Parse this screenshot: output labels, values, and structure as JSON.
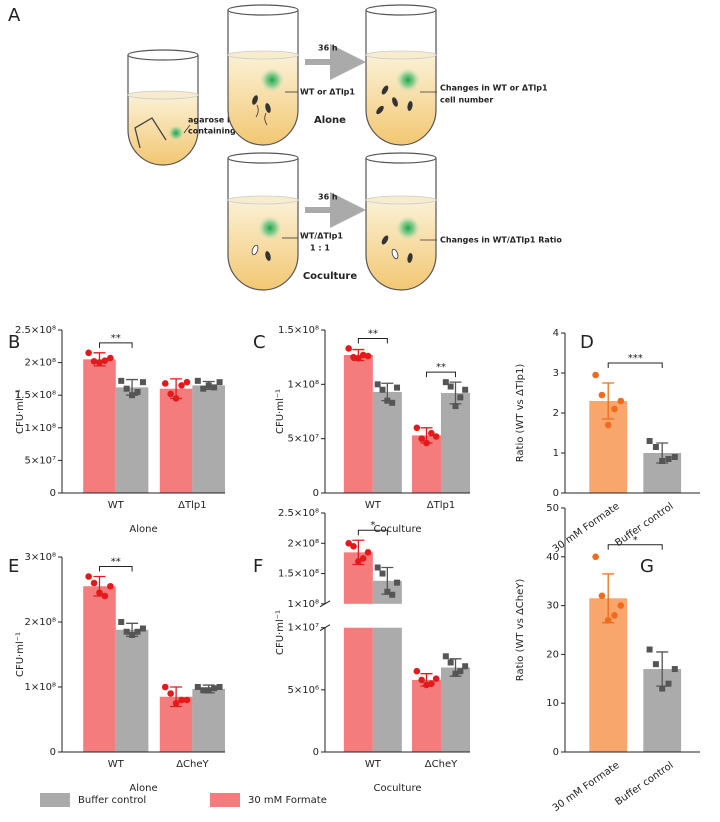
{
  "diagram": {
    "panel_label": "A",
    "start_tube": {
      "label_lines": [
        "agarose bead",
        "containing formate"
      ]
    },
    "alone": {
      "time": "36 h",
      "strain_label": "WT or ΔTlp1",
      "group": "Alone",
      "result_lines": [
        "Changes in WT or ΔTlp1",
        "cell number"
      ]
    },
    "coculture": {
      "time": "36 h",
      "strain_lines": [
        "WT/ΔTlp1",
        "1 : 1"
      ],
      "group": "Coculture",
      "result": "Changes in WT/ΔTlp1 Ratio"
    }
  },
  "chart_data": [
    {
      "type": "bar",
      "panel_label": "B",
      "ylabel": "CFU·ml⁻¹",
      "xlabel": "Alone",
      "categories": [
        "WT",
        "ΔTlp1"
      ],
      "series": [
        {
          "name": "30 mM Formate",
          "color": "#f47c7c",
          "point_color": "#e31a1c",
          "marker": "circle",
          "values": [
            205000000.0,
            160000000.0
          ],
          "errors": [
            10000000.0,
            15000000.0
          ],
          "points": [
            [
              215000000.0,
              202000000.0,
              200000000.0,
              203000000.0,
              207000000.0
            ],
            [
              168000000.0,
              152000000.0,
              145000000.0,
              165000000.0,
              170000000.0
            ]
          ]
        },
        {
          "name": "Buffer control",
          "color": "#ababab",
          "point_color": "#555555",
          "marker": "square",
          "values": [
            162000000.0,
            165000000.0
          ],
          "errors": [
            12000000.0,
            6000000.0
          ],
          "points": [
            [
              172000000.0,
              160000000.0,
              150000000.0,
              155000000.0,
              170000000.0
            ],
            [
              172000000.0,
              160000000.0,
              165000000.0,
              162000000.0,
              170000000.0
            ]
          ]
        }
      ],
      "significance": [
        "**",
        null
      ],
      "ylim": [
        0,
        250000000.0
      ],
      "yticks": [
        0,
        {
          "value": 50000000.0,
          "label": "5×10⁷"
        },
        {
          "value": 100000000.0,
          "label": "1×10⁸"
        },
        {
          "value": 150000000.0,
          "label": "1.5×10⁸"
        },
        {
          "value": 200000000.0,
          "label": "2×10⁸"
        },
        {
          "value": 250000000.0,
          "label": "2.5×10⁸"
        }
      ]
    },
    {
      "type": "bar",
      "panel_label": "C",
      "ylabel": "CFU·ml⁻¹",
      "xlabel": "Coculture",
      "categories": [
        "WT",
        "ΔTlp1"
      ],
      "series": [
        {
          "name": "30 mM Formate",
          "color": "#f47c7c",
          "point_color": "#e31a1c",
          "marker": "circle",
          "values": [
            127000000.0,
            53000000.0
          ],
          "errors": [
            5000000.0,
            7000000.0
          ],
          "points": [
            [
              133000000.0,
              125000000.0,
              124000000.0,
              127000000.0,
              126000000.0
            ],
            [
              60000000.0,
              50000000.0,
              46000000.0,
              55000000.0,
              52000000.0
            ]
          ]
        },
        {
          "name": "Buffer control",
          "color": "#ababab",
          "point_color": "#555555",
          "marker": "square",
          "values": [
            93000000.0,
            92000000.0
          ],
          "errors": [
            8000000.0,
            10000000.0
          ],
          "points": [
            [
              100000000.0,
              95000000.0,
              85000000.0,
              83000000.0,
              97000000.0
            ],
            [
              102000000.0,
              98000000.0,
              80000000.0,
              88000000.0,
              95000000.0
            ]
          ]
        }
      ],
      "significance": [
        "**",
        "**"
      ],
      "ylim": [
        0,
        150000000.0
      ],
      "yticks": [
        0,
        {
          "value": 50000000.0,
          "label": "5×10⁷"
        },
        {
          "value": 100000000.0,
          "label": "1×10⁸"
        },
        {
          "value": 150000000.0,
          "label": "1.5×10⁸"
        }
      ]
    },
    {
      "type": "bar",
      "panel_label": "D",
      "ylabel": "Ratio (WT vs ΔTlp1)",
      "categories": [
        "30 mM Formate",
        "Buffer control"
      ],
      "values": [
        2.3,
        1.0
      ],
      "errors": [
        0.45,
        0.25
      ],
      "colors": [
        "#f9a66c",
        "#ababab"
      ],
      "point_colors": [
        "#f26b1d",
        "#555555"
      ],
      "markers": [
        "circle",
        "square"
      ],
      "points": [
        [
          2.95,
          2.45,
          1.7,
          2.1,
          2.3
        ],
        [
          1.3,
          1.15,
          0.8,
          0.85,
          0.9
        ]
      ],
      "significance": "***",
      "ylim": [
        0,
        4
      ],
      "yticks": [
        0,
        1,
        2,
        3,
        4
      ]
    },
    {
      "type": "bar",
      "panel_label": "E",
      "ylabel": "CFU·ml⁻¹",
      "xlabel": "Alone",
      "categories": [
        "WT",
        "ΔCheY"
      ],
      "series": [
        {
          "name": "30 mM Formate",
          "color": "#f47c7c",
          "point_color": "#e31a1c",
          "marker": "circle",
          "values": [
            255000000.0,
            85000000.0
          ],
          "errors": [
            15000000.0,
            15000000.0
          ],
          "points": [
            [
              270000000.0,
              260000000.0,
              245000000.0,
              240000000.0,
              255000000.0
            ],
            [
              100000000.0,
              90000000.0,
              75000000.0,
              80000000.0,
              80000000.0
            ]
          ]
        },
        {
          "name": "Buffer control",
          "color": "#ababab",
          "point_color": "#555555",
          "marker": "square",
          "values": [
            188000000.0,
            97000000.0
          ],
          "errors": [
            10000000.0,
            6000000.0
          ],
          "points": [
            [
              200000000.0,
              185000000.0,
              180000000.0,
              185000000.0,
              190000000.0
            ],
            [
              100000000.0,
              95000000.0,
              95000000.0,
              98000000.0,
              100000000.0
            ]
          ]
        }
      ],
      "significance": [
        "**",
        null
      ],
      "ylim": [
        0,
        300000000.0
      ],
      "yticks": [
        0,
        {
          "value": 100000000.0,
          "label": "1×10⁸"
        },
        {
          "value": 200000000.0,
          "label": "2×10⁸"
        },
        {
          "value": 300000000.0,
          "label": "3×10⁸"
        }
      ]
    },
    {
      "type": "bar",
      "panel_label": "F",
      "ylabel": "CFU·ml⁻¹",
      "xlabel": "Coculture",
      "categories": [
        "WT",
        "ΔCheY"
      ],
      "series": [
        {
          "name": "30 mM Formate",
          "color": "#f47c7c",
          "point_color": "#e31a1c",
          "marker": "circle",
          "values": [
            185000000.0,
            5800000.0
          ],
          "errors": [
            20000000.0,
            500000.0
          ],
          "points": [
            [
              200000000.0,
              195000000.0,
              170000000.0,
              175000000.0,
              185000000.0
            ],
            [
              6500000.0,
              5800000.0,
              5400000.0,
              5500000.0,
              5900000.0
            ]
          ]
        },
        {
          "name": "Buffer control",
          "color": "#ababab",
          "point_color": "#555555",
          "marker": "square",
          "values": [
            138000000.0,
            6800000.0
          ],
          "errors": [
            22000000.0,
            700000.0
          ],
          "points": [
            [
              160000000.0,
              150000000.0,
              120000000.0,
              115000000.0,
              135000000.0
            ],
            [
              7700000.0,
              7200000.0,
              6300000.0,
              6500000.0,
              6900000.0
            ]
          ]
        }
      ],
      "significance": [
        "*",
        null
      ],
      "ylim": [
        0,
        250000000.0
      ],
      "ybreak": [
        10000000.0,
        100000000.0
      ],
      "yticks": [
        0,
        {
          "value": 5000000.0,
          "label": "5×10⁶"
        },
        {
          "value": 10000000.0,
          "label": "1×10⁷"
        },
        {
          "value": 100000000.0,
          "label": "1×10⁸"
        },
        {
          "value": 150000000.0,
          "label": "1.5×10⁸"
        },
        {
          "value": 200000000.0,
          "label": "2×10⁸"
        },
        {
          "value": 250000000.0,
          "label": "2.5×10⁸"
        }
      ]
    },
    {
      "type": "bar",
      "panel_label": "G",
      "ylabel": "Ratio (WT vs ΔCheY)",
      "categories": [
        "30 mM Formate",
        "Buffer control"
      ],
      "values": [
        31.5,
        17
      ],
      "errors": [
        5,
        3.5
      ],
      "colors": [
        "#f9a66c",
        "#ababab"
      ],
      "point_colors": [
        "#f26b1d",
        "#555555"
      ],
      "markers": [
        "circle",
        "square"
      ],
      "points": [
        [
          40,
          32,
          27,
          28,
          30
        ],
        [
          21,
          18,
          13,
          14,
          17
        ]
      ],
      "significance": "*",
      "ylim": [
        0,
        50
      ],
      "yticks": [
        0,
        10,
        20,
        30,
        40,
        50
      ]
    }
  ]
}
